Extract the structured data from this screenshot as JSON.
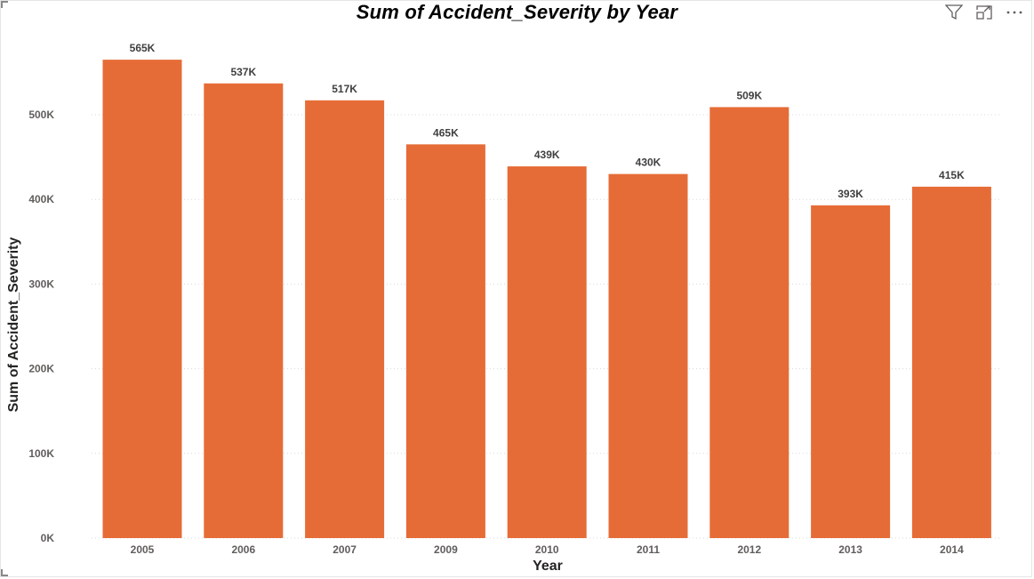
{
  "toolbar": {
    "icons": [
      "filter-icon",
      "focus-mode-icon",
      "more-options-icon"
    ]
  },
  "chart_data": {
    "type": "bar",
    "title": "Sum of Accident_Severity by Year",
    "xlabel": "Year",
    "ylabel": "Sum of Accident_Severity",
    "categories": [
      "2005",
      "2006",
      "2007",
      "2009",
      "2010",
      "2011",
      "2012",
      "2013",
      "2014"
    ],
    "values": [
      565000,
      537000,
      517000,
      465000,
      439000,
      430000,
      509000,
      393000,
      415000
    ],
    "data_labels": [
      "565K",
      "537K",
      "517K",
      "465K",
      "439K",
      "430K",
      "509K",
      "393K",
      "415K"
    ],
    "ylim": [
      0,
      600000
    ],
    "yticks": [
      0,
      100000,
      200000,
      300000,
      400000,
      500000
    ],
    "ytick_labels": [
      "0K",
      "100K",
      "200K",
      "300K",
      "400K",
      "500K"
    ],
    "grid": true,
    "bar_color": "#E66C37",
    "grid_color": "#d8d8d8"
  }
}
